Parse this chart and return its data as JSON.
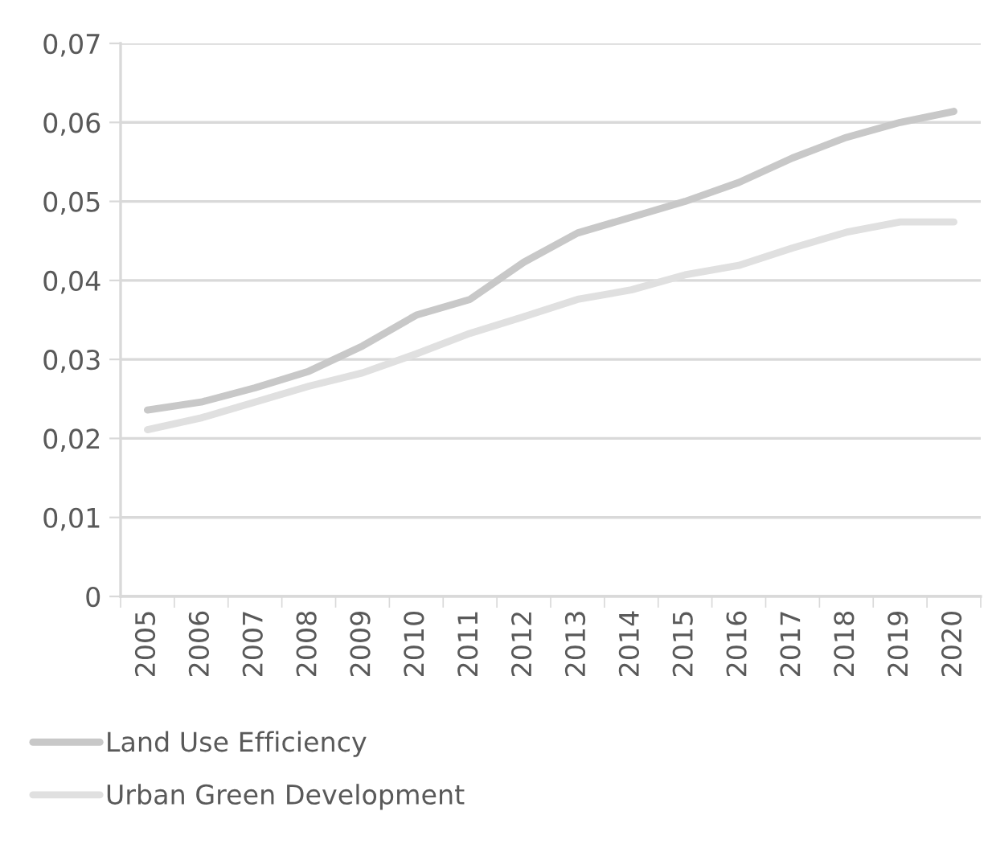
{
  "chart_data": {
    "type": "line",
    "categories": [
      "2005",
      "2006",
      "2007",
      "2008",
      "2009",
      "2010",
      "2011",
      "2012",
      "2013",
      "2014",
      "2015",
      "2016",
      "2017",
      "2018",
      "2019",
      "2020"
    ],
    "series": [
      {
        "name": "Land Use Efficiency",
        "color": "#c8c8c8",
        "values": [
          0.0236,
          0.0246,
          0.0264,
          0.0285,
          0.0317,
          0.0356,
          0.0376,
          0.0423,
          0.046,
          0.048,
          0.05,
          0.0524,
          0.0555,
          0.0581,
          0.06,
          0.0614
        ]
      },
      {
        "name": "Urban Green Development",
        "color": "#e0e0e0",
        "values": [
          0.0211,
          0.0226,
          0.0246,
          0.0266,
          0.0283,
          0.0307,
          0.0333,
          0.0354,
          0.0376,
          0.0388,
          0.0407,
          0.0419,
          0.0441,
          0.0461,
          0.0474,
          0.0474
        ]
      }
    ],
    "ylim": [
      0,
      0.07
    ],
    "yticks": [
      0,
      {
        "value": 0.01,
        "label": "0,01"
      },
      {
        "value": 0.02,
        "label": "0,02"
      },
      {
        "value": 0.03,
        "label": "0,03"
      },
      {
        "value": 0.04,
        "label": "0,04"
      },
      {
        "value": 0.05,
        "label": "0,05"
      },
      {
        "value": 0.06,
        "label": "0,06"
      },
      {
        "value": 0.07,
        "label": "0,07"
      }
    ],
    "grid": "y",
    "legend": "bottom",
    "marker": "none",
    "line_style": "solid"
  }
}
